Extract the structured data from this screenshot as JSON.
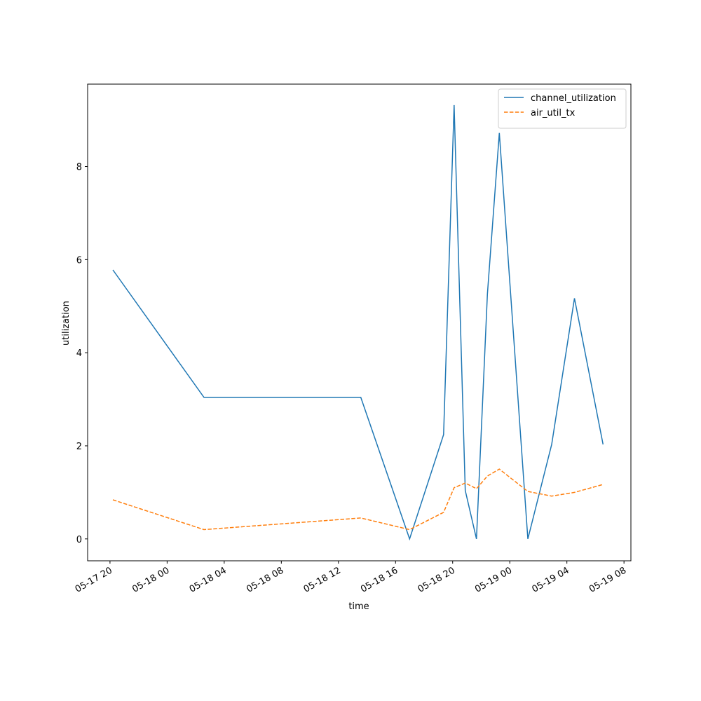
{
  "chart_data": {
    "type": "line",
    "x_label": "time",
    "y_label": "utilization",
    "x": [
      "05-17 20:12",
      "05-18 02:35",
      "05-18 13:34",
      "05-18 16:59",
      "05-18 19:22",
      "05-18 20:06",
      "05-18 20:53",
      "05-18 21:40",
      "05-18 22:26",
      "05-18 23:16",
      "05-19 01:16",
      "05-19 02:56",
      "05-19 04:32",
      "05-19 06:32"
    ],
    "series": [
      {
        "name": "channel_utilization",
        "color": "#1f77b4",
        "dash": false,
        "values": [
          5.78,
          3.04,
          3.04,
          0,
          2.24,
          9.32,
          1.04,
          0,
          5.26,
          8.72,
          0,
          2.03,
          5.17,
          2.03
        ]
      },
      {
        "name": "air_util_tx",
        "color": "#ff7f0e",
        "dash": true,
        "values": [
          0.84,
          0.2,
          0.45,
          0.2,
          0.57,
          1.1,
          1.2,
          1.08,
          1.35,
          1.5,
          1.02,
          0.92,
          1.0,
          1.17
        ]
      }
    ],
    "xlim": [
      "05-17 18:26",
      "05-19 08:29"
    ],
    "xticks": [
      "05-17 20",
      "05-18 00",
      "05-18 04",
      "05-18 08",
      "05-18 12",
      "05-18 16",
      "05-18 20",
      "05-19 00",
      "05-19 04",
      "05-19 08"
    ],
    "ylim": [
      -0.47,
      9.77
    ],
    "yticks": [
      0,
      2,
      4,
      6,
      8
    ],
    "legend": "upper right"
  }
}
